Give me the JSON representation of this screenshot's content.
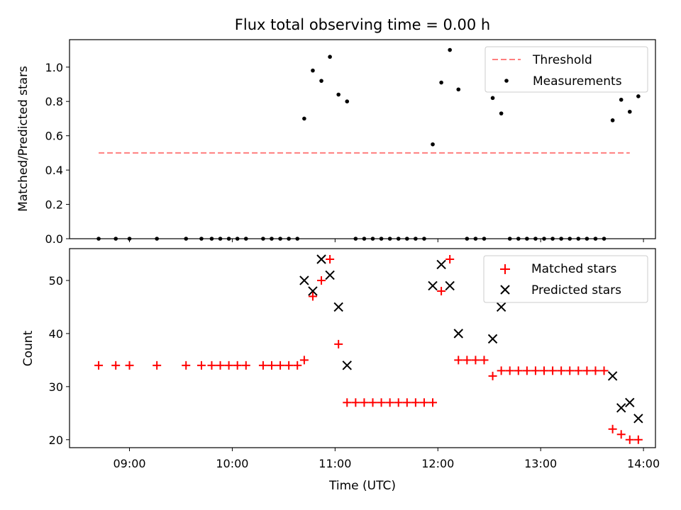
{
  "chart_data": [
    {
      "type": "scatter",
      "title": "Flux total observing time = 0.00 h",
      "xlabel": "",
      "ylabel": "Matched/Predicted stars",
      "xlim": [
        "08:25",
        "14:07"
      ],
      "ylim": [
        0,
        1.16
      ],
      "y_ticks": [
        "0.0",
        "0.2",
        "0.4",
        "0.6",
        "0.8",
        "1.0"
      ],
      "grid": false,
      "legend": "top-right",
      "threshold": {
        "name": "Threshold",
        "value": 0.5,
        "x_range": [
          "08:42",
          "13:52"
        ],
        "color": "#ff7f7f",
        "style": "dashed"
      },
      "series": [
        {
          "name": "Measurements",
          "color": "#000000",
          "marker": "dot",
          "points": [
            [
              "08:42",
              0
            ],
            [
              "08:52",
              0
            ],
            [
              "09:00",
              0
            ],
            [
              "09:16",
              0
            ],
            [
              "09:33",
              0
            ],
            [
              "09:42",
              0
            ],
            [
              "09:48",
              0
            ],
            [
              "09:53",
              0
            ],
            [
              "09:58",
              0
            ],
            [
              "10:03",
              0
            ],
            [
              "10:08",
              0
            ],
            [
              "10:18",
              0
            ],
            [
              "10:23",
              0
            ],
            [
              "10:28",
              0
            ],
            [
              "10:33",
              0
            ],
            [
              "10:38",
              0
            ],
            [
              "10:42",
              0.7
            ],
            [
              "10:47",
              0.98
            ],
            [
              "10:52",
              0.92
            ],
            [
              "10:57",
              1.06
            ],
            [
              "11:02",
              0.84
            ],
            [
              "11:07",
              0.8
            ],
            [
              "11:12",
              0
            ],
            [
              "11:17",
              0
            ],
            [
              "11:22",
              0
            ],
            [
              "11:27",
              0
            ],
            [
              "11:32",
              0
            ],
            [
              "11:37",
              0
            ],
            [
              "11:42",
              0
            ],
            [
              "11:47",
              0
            ],
            [
              "11:52",
              0
            ],
            [
              "11:57",
              0.55
            ],
            [
              "12:02",
              0.91
            ],
            [
              "12:07",
              1.1
            ],
            [
              "12:12",
              0.87
            ],
            [
              "12:17",
              0
            ],
            [
              "12:22",
              0
            ],
            [
              "12:27",
              0
            ],
            [
              "12:32",
              0.82
            ],
            [
              "12:37",
              0.73
            ],
            [
              "12:42",
              0
            ],
            [
              "12:47",
              0
            ],
            [
              "12:52",
              0
            ],
            [
              "12:57",
              0
            ],
            [
              "13:02",
              0
            ],
            [
              "13:07",
              0
            ],
            [
              "13:12",
              0
            ],
            [
              "13:17",
              0
            ],
            [
              "13:22",
              0
            ],
            [
              "13:27",
              0
            ],
            [
              "13:32",
              0
            ],
            [
              "13:37",
              0
            ],
            [
              "13:42",
              0.69
            ],
            [
              "13:47",
              0.81
            ],
            [
              "13:52",
              0.74
            ],
            [
              "13:57",
              0.83
            ]
          ]
        }
      ]
    },
    {
      "type": "scatter",
      "title": "",
      "xlabel": "Time (UTC)",
      "ylabel": "Count",
      "xlim": [
        "08:25",
        "14:07"
      ],
      "ylim": [
        18.5,
        56
      ],
      "x_ticks": [
        "09:00",
        "10:00",
        "11:00",
        "12:00",
        "13:00",
        "14:00"
      ],
      "y_ticks": [
        "20",
        "30",
        "40",
        "50"
      ],
      "grid": false,
      "legend": "top-right",
      "series": [
        {
          "name": "Matched stars",
          "color": "#ff0000",
          "marker": "plus",
          "points": [
            [
              "08:42",
              34
            ],
            [
              "08:52",
              34
            ],
            [
              "09:00",
              34
            ],
            [
              "09:16",
              34
            ],
            [
              "09:33",
              34
            ],
            [
              "09:42",
              34
            ],
            [
              "09:48",
              34
            ],
            [
              "09:53",
              34
            ],
            [
              "09:58",
              34
            ],
            [
              "10:03",
              34
            ],
            [
              "10:08",
              34
            ],
            [
              "10:18",
              34
            ],
            [
              "10:23",
              34
            ],
            [
              "10:28",
              34
            ],
            [
              "10:33",
              34
            ],
            [
              "10:38",
              34
            ],
            [
              "10:42",
              35
            ],
            [
              "10:47",
              47
            ],
            [
              "10:52",
              50
            ],
            [
              "10:57",
              54
            ],
            [
              "11:02",
              38
            ],
            [
              "11:07",
              27
            ],
            [
              "11:12",
              27
            ],
            [
              "11:17",
              27
            ],
            [
              "11:22",
              27
            ],
            [
              "11:27",
              27
            ],
            [
              "11:32",
              27
            ],
            [
              "11:37",
              27
            ],
            [
              "11:42",
              27
            ],
            [
              "11:47",
              27
            ],
            [
              "11:52",
              27
            ],
            [
              "11:57",
              27
            ],
            [
              "12:02",
              48
            ],
            [
              "12:07",
              54
            ],
            [
              "12:12",
              35
            ],
            [
              "12:17",
              35
            ],
            [
              "12:22",
              35
            ],
            [
              "12:27",
              35
            ],
            [
              "12:32",
              32
            ],
            [
              "12:37",
              33
            ],
            [
              "12:42",
              33
            ],
            [
              "12:47",
              33
            ],
            [
              "12:52",
              33
            ],
            [
              "12:57",
              33
            ],
            [
              "13:02",
              33
            ],
            [
              "13:07",
              33
            ],
            [
              "13:12",
              33
            ],
            [
              "13:17",
              33
            ],
            [
              "13:22",
              33
            ],
            [
              "13:27",
              33
            ],
            [
              "13:32",
              33
            ],
            [
              "13:37",
              33
            ],
            [
              "13:42",
              22
            ],
            [
              "13:47",
              21
            ],
            [
              "13:52",
              20
            ],
            [
              "13:57",
              20
            ]
          ]
        },
        {
          "name": "Predicted stars",
          "color": "#000000",
          "marker": "x",
          "points": [
            [
              "10:42",
              50
            ],
            [
              "10:47",
              48
            ],
            [
              "10:52",
              54
            ],
            [
              "10:57",
              51
            ],
            [
              "11:02",
              45
            ],
            [
              "11:07",
              34
            ],
            [
              "11:57",
              49
            ],
            [
              "12:02",
              53
            ],
            [
              "12:07",
              49
            ],
            [
              "12:12",
              40
            ],
            [
              "12:32",
              39
            ],
            [
              "12:37",
              45
            ],
            [
              "13:42",
              32
            ],
            [
              "13:47",
              26
            ],
            [
              "13:52",
              27
            ],
            [
              "13:57",
              24
            ]
          ]
        }
      ]
    }
  ]
}
